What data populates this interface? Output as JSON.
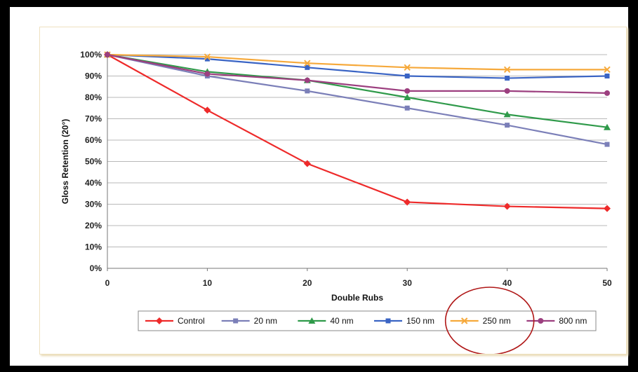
{
  "chart_data": {
    "type": "line",
    "title": "",
    "xlabel": "Double Rubs",
    "ylabel": "Gloss Retention (20°)",
    "x": [
      0,
      10,
      20,
      30,
      40,
      50
    ],
    "xlim": [
      0,
      50
    ],
    "ylim": [
      0,
      100
    ],
    "y_ticks": [
      "0%",
      "10%",
      "20%",
      "30%",
      "40%",
      "50%",
      "60%",
      "70%",
      "80%",
      "90%",
      "100%"
    ],
    "x_ticks": [
      "0",
      "10",
      "20",
      "30",
      "40",
      "50"
    ],
    "grid": "horizontal",
    "legend_position": "bottom",
    "series": [
      {
        "name": "Control",
        "color": "#ee2a2a",
        "marker": "diamond",
        "values": [
          100,
          74,
          49,
          31,
          29,
          28
        ]
      },
      {
        "name": "20 nm",
        "color": "#7b7fb8",
        "marker": "square",
        "values": [
          100,
          90,
          83,
          75,
          67,
          58
        ]
      },
      {
        "name": "40 nm",
        "color": "#2f9a4a",
        "marker": "triangle",
        "values": [
          100,
          92,
          88,
          80,
          72,
          66
        ]
      },
      {
        "name": "150 nm",
        "color": "#3a64c4",
        "marker": "square",
        "values": [
          100,
          98,
          94,
          90,
          89,
          90
        ]
      },
      {
        "name": "250 nm",
        "color": "#f6a93b",
        "marker": "x",
        "values": [
          100,
          99,
          96,
          94,
          93,
          93
        ]
      },
      {
        "name": "800 nm",
        "color": "#9c3f7f",
        "marker": "circle",
        "values": [
          100,
          91,
          88,
          83,
          83,
          82
        ]
      }
    ],
    "annotation": {
      "shape": "ellipse",
      "color": "#b01818",
      "target": "250 nm"
    }
  }
}
